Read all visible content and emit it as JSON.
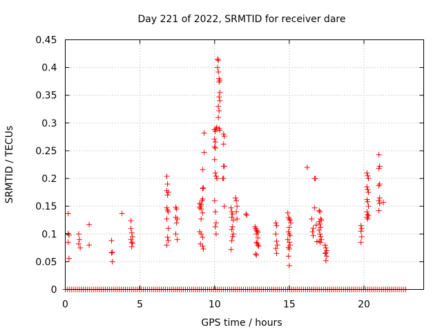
{
  "chart_data": {
    "type": "scatter",
    "title": "Day 221 of 2022, SRMTID for receiver dare",
    "xlabel": "GPS time / hours",
    "ylabel": "SRMTID / TECUs",
    "xlim": [
      0,
      24
    ],
    "ylim": [
      0,
      0.45
    ],
    "xticks": [
      0,
      5,
      10,
      15,
      20
    ],
    "xtick_labels": [
      "0",
      "5",
      "10",
      "15",
      "20"
    ],
    "yticks": [
      0,
      0.05,
      0.1,
      0.15,
      0.2,
      0.25,
      0.3,
      0.35,
      0.4,
      0.45
    ],
    "ytick_labels": [
      "0",
      "0.05",
      "0.1",
      "0.15",
      "0.2",
      "0.25",
      "0.3",
      "0.35",
      "0.4",
      "0.45"
    ],
    "grid": true,
    "marker": "+",
    "color": "#ff0000",
    "zero_line": {
      "x_start": 0,
      "x_end": 22.8,
      "y": 0,
      "note": "dense row of + markers at SRMTID 0"
    },
    "series": [
      {
        "name": "SRMTID",
        "points": [
          [
            0.2,
            0.137
          ],
          [
            0.2,
            0.101
          ],
          [
            0.25,
            0.098
          ],
          [
            0.2,
            0.085
          ],
          [
            0.25,
            0.056
          ],
          [
            0.9,
            0.1
          ],
          [
            0.95,
            0.09
          ],
          [
            0.9,
            0.082
          ],
          [
            1.0,
            0.075
          ],
          [
            1.6,
            0.117
          ],
          [
            1.6,
            0.08
          ],
          [
            3.1,
            0.088
          ],
          [
            3.15,
            0.067
          ],
          [
            3.1,
            0.066
          ],
          [
            3.15,
            0.05
          ],
          [
            3.8,
            0.137
          ],
          [
            4.4,
            0.124
          ],
          [
            4.4,
            0.11
          ],
          [
            4.45,
            0.102
          ],
          [
            4.5,
            0.095
          ],
          [
            4.4,
            0.09
          ],
          [
            4.45,
            0.085
          ],
          [
            4.5,
            0.083
          ],
          [
            4.45,
            0.077
          ],
          [
            6.8,
            0.204
          ],
          [
            6.85,
            0.19
          ],
          [
            6.8,
            0.178
          ],
          [
            6.9,
            0.175
          ],
          [
            6.85,
            0.17
          ],
          [
            6.8,
            0.147
          ],
          [
            6.85,
            0.143
          ],
          [
            6.9,
            0.14
          ],
          [
            6.8,
            0.127
          ],
          [
            6.9,
            0.11
          ],
          [
            6.85,
            0.094
          ],
          [
            6.9,
            0.088
          ],
          [
            6.8,
            0.08
          ],
          [
            7.4,
            0.148
          ],
          [
            7.45,
            0.145
          ],
          [
            7.4,
            0.13
          ],
          [
            7.5,
            0.127
          ],
          [
            7.45,
            0.12
          ],
          [
            7.4,
            0.1
          ],
          [
            7.5,
            0.09
          ],
          [
            9.0,
            0.155
          ],
          [
            9.05,
            0.15
          ],
          [
            9.0,
            0.147
          ],
          [
            9.1,
            0.145
          ],
          [
            9.15,
            0.16
          ],
          [
            9.2,
            0.163
          ],
          [
            9.1,
            0.153
          ],
          [
            9.2,
            0.138
          ],
          [
            9.1,
            0.127
          ],
          [
            9.0,
            0.104
          ],
          [
            9.1,
            0.1
          ],
          [
            9.2,
            0.094
          ],
          [
            9.05,
            0.082
          ],
          [
            9.2,
            0.078
          ],
          [
            9.25,
            0.073
          ],
          [
            9.2,
            0.182
          ],
          [
            9.25,
            0.183
          ],
          [
            9.2,
            0.216
          ],
          [
            9.3,
            0.247
          ],
          [
            9.3,
            0.282
          ],
          [
            10.0,
            0.288
          ],
          [
            10.05,
            0.285
          ],
          [
            10.1,
            0.29
          ],
          [
            10.15,
            0.292
          ],
          [
            10.0,
            0.271
          ],
          [
            10.05,
            0.266
          ],
          [
            10.0,
            0.257
          ],
          [
            10.05,
            0.255
          ],
          [
            10.0,
            0.234
          ],
          [
            10.05,
            0.21
          ],
          [
            10.1,
            0.204
          ],
          [
            10.15,
            0.2
          ],
          [
            10.0,
            0.16
          ],
          [
            10.05,
            0.14
          ],
          [
            10.1,
            0.12
          ],
          [
            10.05,
            0.113
          ],
          [
            10.1,
            0.1
          ],
          [
            10.2,
            0.415
          ],
          [
            10.25,
            0.413
          ],
          [
            10.2,
            0.4
          ],
          [
            10.25,
            0.392
          ],
          [
            10.3,
            0.38
          ],
          [
            10.35,
            0.377
          ],
          [
            10.3,
            0.374
          ],
          [
            10.35,
            0.355
          ],
          [
            10.3,
            0.347
          ],
          [
            10.35,
            0.34
          ],
          [
            10.25,
            0.33
          ],
          [
            10.3,
            0.322
          ],
          [
            10.25,
            0.31
          ],
          [
            10.3,
            0.29
          ],
          [
            10.35,
            0.287
          ],
          [
            10.6,
            0.28
          ],
          [
            10.65,
            0.276
          ],
          [
            10.6,
            0.262
          ],
          [
            10.6,
            0.222
          ],
          [
            10.65,
            0.222
          ],
          [
            10.55,
            0.2
          ],
          [
            10.6,
            0.2
          ],
          [
            10.65,
            0.15
          ],
          [
            11.1,
            0.147
          ],
          [
            11.15,
            0.14
          ],
          [
            11.2,
            0.136
          ],
          [
            11.15,
            0.13
          ],
          [
            11.25,
            0.125
          ],
          [
            11.2,
            0.113
          ],
          [
            11.15,
            0.108
          ],
          [
            11.25,
            0.1
          ],
          [
            11.2,
            0.095
          ],
          [
            11.15,
            0.088
          ],
          [
            11.1,
            0.072
          ],
          [
            11.4,
            0.165
          ],
          [
            11.45,
            0.16
          ],
          [
            11.5,
            0.15
          ],
          [
            11.45,
            0.14
          ],
          [
            11.5,
            0.127
          ],
          [
            12.1,
            0.136
          ],
          [
            12.15,
            0.134
          ],
          [
            12.7,
            0.113
          ],
          [
            12.75,
            0.11
          ],
          [
            12.8,
            0.107
          ],
          [
            12.85,
            0.105
          ],
          [
            12.9,
            0.103
          ],
          [
            12.8,
            0.1
          ],
          [
            12.9,
            0.093
          ],
          [
            12.8,
            0.085
          ],
          [
            12.85,
            0.083
          ],
          [
            12.9,
            0.08
          ],
          [
            12.95,
            0.078
          ],
          [
            12.75,
            0.064
          ],
          [
            12.8,
            0.062
          ],
          [
            14.1,
            0.12
          ],
          [
            14.15,
            0.115
          ],
          [
            14.1,
            0.1
          ],
          [
            14.15,
            0.087
          ],
          [
            14.2,
            0.08
          ],
          [
            14.1,
            0.074
          ],
          [
            14.15,
            0.065
          ],
          [
            14.9,
            0.138
          ],
          [
            14.95,
            0.13
          ],
          [
            15.0,
            0.127
          ],
          [
            15.05,
            0.125
          ],
          [
            15.1,
            0.12
          ],
          [
            15.0,
            0.112
          ],
          [
            14.95,
            0.104
          ],
          [
            15.0,
            0.1
          ],
          [
            15.05,
            0.097
          ],
          [
            14.9,
            0.09
          ],
          [
            15.0,
            0.085
          ],
          [
            15.05,
            0.08
          ],
          [
            14.95,
            0.076
          ],
          [
            15.0,
            0.073
          ],
          [
            14.95,
            0.06
          ],
          [
            15.0,
            0.043
          ],
          [
            16.2,
            0.22
          ],
          [
            16.5,
            0.127
          ],
          [
            16.6,
            0.11
          ],
          [
            16.55,
            0.104
          ],
          [
            16.6,
            0.097
          ],
          [
            16.7,
            0.147
          ],
          [
            16.7,
            0.2
          ],
          [
            16.75,
            0.2
          ],
          [
            16.8,
            0.116
          ],
          [
            16.85,
            0.086
          ],
          [
            17.0,
            0.142
          ],
          [
            17.05,
            0.14
          ],
          [
            17.1,
            0.127
          ],
          [
            17.15,
            0.125
          ],
          [
            17.0,
            0.122
          ],
          [
            17.05,
            0.118
          ],
          [
            17.1,
            0.112
          ],
          [
            17.0,
            0.107
          ],
          [
            17.05,
            0.1
          ],
          [
            17.1,
            0.095
          ],
          [
            17.15,
            0.09
          ],
          [
            17.0,
            0.087
          ],
          [
            17.1,
            0.085
          ],
          [
            17.4,
            0.08
          ],
          [
            17.45,
            0.075
          ],
          [
            17.5,
            0.07
          ],
          [
            17.45,
            0.066
          ],
          [
            17.5,
            0.06
          ],
          [
            17.45,
            0.052
          ],
          [
            17.4,
            0.065
          ],
          [
            19.8,
            0.115
          ],
          [
            19.85,
            0.11
          ],
          [
            19.8,
            0.105
          ],
          [
            19.85,
            0.095
          ],
          [
            19.8,
            0.085
          ],
          [
            20.2,
            0.21
          ],
          [
            20.25,
            0.205
          ],
          [
            20.3,
            0.2
          ],
          [
            20.2,
            0.185
          ],
          [
            20.25,
            0.18
          ],
          [
            20.3,
            0.175
          ],
          [
            20.2,
            0.162
          ],
          [
            20.25,
            0.158
          ],
          [
            20.3,
            0.15
          ],
          [
            20.2,
            0.14
          ],
          [
            20.25,
            0.135
          ],
          [
            20.3,
            0.133
          ],
          [
            20.2,
            0.13
          ],
          [
            20.25,
            0.127
          ],
          [
            21.0,
            0.243
          ],
          [
            21.05,
            0.222
          ],
          [
            21.0,
            0.218
          ],
          [
            21.05,
            0.19
          ],
          [
            21.0,
            0.187
          ],
          [
            21.05,
            0.165
          ],
          [
            21.0,
            0.16
          ],
          [
            21.05,
            0.155
          ],
          [
            21.0,
            0.142
          ],
          [
            21.3,
            0.157
          ]
        ]
      }
    ]
  }
}
